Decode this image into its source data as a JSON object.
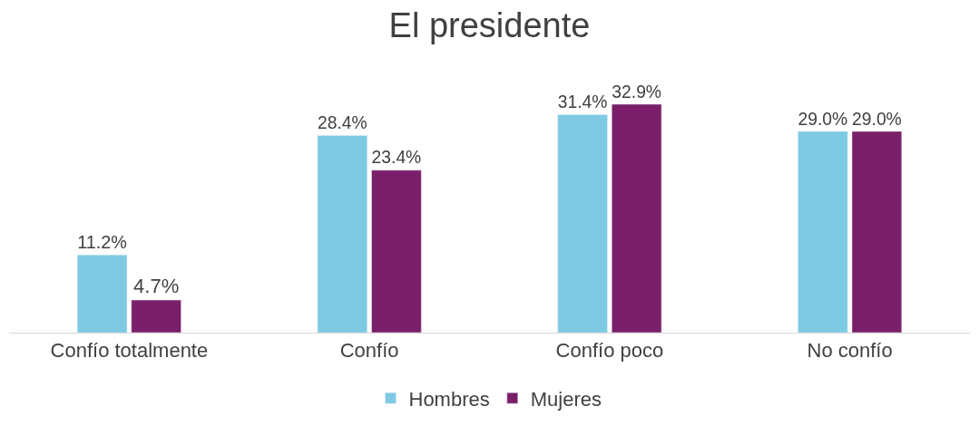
{
  "chart_data": {
    "type": "bar",
    "title": "El presidente",
    "categories": [
      "Confío totalmente",
      "Confío",
      "Confío poco",
      "No confío"
    ],
    "series": [
      {
        "name": "Hombres",
        "color": "#7ecae3",
        "values": [
          11.2,
          28.4,
          31.4,
          29.0
        ],
        "value_labels": [
          "11.2%",
          "28.4%",
          "31.4%",
          "29.0%"
        ]
      },
      {
        "name": "Mujeres",
        "color": "#7b1f6a",
        "values": [
          4.7,
          23.4,
          32.9,
          29.0
        ],
        "value_labels": [
          "4.7%",
          "23.4%",
          "32.9%",
          "29.0%"
        ]
      }
    ],
    "legend": "bottom"
  }
}
